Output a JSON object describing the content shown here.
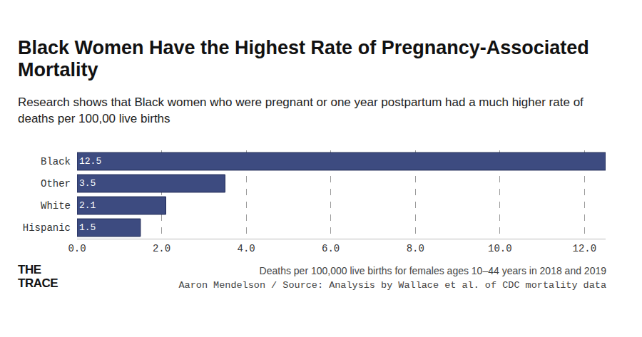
{
  "chart_data": {
    "type": "bar",
    "orientation": "horizontal",
    "title": "Black Women Have the Highest Rate of Pregnancy-Associated Mortality",
    "subtitle": "Research shows that Black women who were pregnant or one year postpartum had a much higher rate of deaths per 100,00 live births",
    "note": "Deaths per 100,000 live births for females ages 10–44 years in 2018 and 2019",
    "source": "Aaron Mendelson / Source: Analysis by Wallace et al. of CDC mortality data",
    "logo": "THE TRACE",
    "categories": [
      "Black",
      "Other",
      "White",
      "Hispanic"
    ],
    "values": [
      12.5,
      3.5,
      2.1,
      1.5
    ],
    "color": "#3d4b80",
    "xlim": [
      0,
      12.5
    ],
    "xticks": [
      {
        "value": 0,
        "label": "0.0"
      },
      {
        "value": 2,
        "label": "2.0"
      },
      {
        "value": 4,
        "label": "4.0"
      },
      {
        "value": 6,
        "label": "6.0"
      },
      {
        "value": 8,
        "label": "8.0"
      },
      {
        "value": 10,
        "label": "10.0"
      },
      {
        "value": 12,
        "label": "12.0"
      }
    ],
    "grid": true,
    "data_labels": true
  }
}
